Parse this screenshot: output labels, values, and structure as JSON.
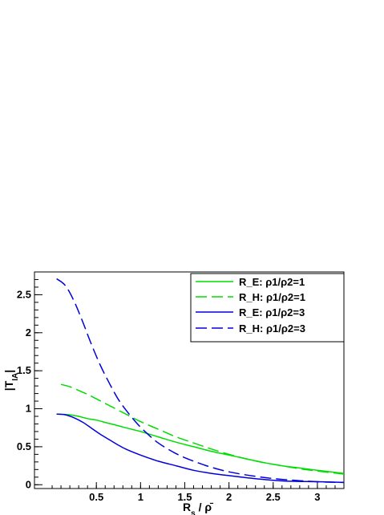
{
  "chart_data": {
    "type": "line",
    "xlabel": "R_s / ρ̄",
    "ylabel": "|T_IA|",
    "xlim": [
      -0.2,
      3.3
    ],
    "ylim": [
      -0.05,
      2.8
    ],
    "grid": false,
    "legend_position": "top-right",
    "x_ticks": [
      0.5,
      1,
      1.5,
      2,
      2.5,
      3
    ],
    "x_tick_labels": [
      "0.5",
      "1",
      "1.5",
      "2",
      "2.5",
      "3"
    ],
    "y_ticks": [
      0,
      0.5,
      1,
      1.5,
      2,
      2.5
    ],
    "y_tick_labels": [
      "0",
      "0.5",
      "1",
      "1.5",
      "2",
      "2.5"
    ],
    "series": [
      {
        "name": "R_E: ρ1/ρ2=1",
        "color": "#00dd00",
        "dash": "solid",
        "x": [
          0.05,
          0.2,
          0.3,
          0.4,
          0.5,
          0.6,
          0.7,
          0.8,
          0.9,
          1.0,
          1.2,
          1.4,
          1.6,
          1.8,
          2.0,
          2.2,
          2.4,
          2.6,
          2.8,
          3.0,
          3.3
        ],
        "y": [
          0.93,
          0.92,
          0.9,
          0.87,
          0.85,
          0.82,
          0.79,
          0.76,
          0.73,
          0.7,
          0.63,
          0.56,
          0.5,
          0.44,
          0.39,
          0.34,
          0.29,
          0.25,
          0.22,
          0.19,
          0.15
        ]
      },
      {
        "name": "R_H: ρ1/ρ2=1",
        "color": "#00dd00",
        "dash": "dashed",
        "x": [
          0.1,
          0.2,
          0.3,
          0.4,
          0.5,
          0.6,
          0.7,
          0.8,
          0.9,
          1.0,
          1.2,
          1.4,
          1.6,
          1.8,
          2.0,
          2.2,
          2.4,
          2.6,
          2.8,
          3.0,
          3.3
        ],
        "y": [
          1.32,
          1.29,
          1.24,
          1.19,
          1.13,
          1.07,
          1.01,
          0.95,
          0.89,
          0.83,
          0.73,
          0.63,
          0.55,
          0.47,
          0.4,
          0.34,
          0.29,
          0.25,
          0.21,
          0.18,
          0.14
        ]
      },
      {
        "name": "R_E: ρ1/ρ2=3",
        "color": "#0000dd",
        "dash": "solid",
        "x": [
          0.05,
          0.15,
          0.25,
          0.35,
          0.45,
          0.55,
          0.65,
          0.75,
          0.85,
          1.0,
          1.2,
          1.4,
          1.6,
          1.8,
          2.0,
          2.3,
          2.6,
          3.0,
          3.3
        ],
        "y": [
          0.93,
          0.92,
          0.88,
          0.82,
          0.74,
          0.66,
          0.59,
          0.52,
          0.46,
          0.39,
          0.31,
          0.25,
          0.19,
          0.15,
          0.12,
          0.08,
          0.05,
          0.04,
          0.03
        ]
      },
      {
        "name": "R_H: ρ1/ρ2=3",
        "color": "#0000dd",
        "dash": "dashed",
        "x": [
          0.05,
          0.15,
          0.25,
          0.35,
          0.45,
          0.55,
          0.65,
          0.75,
          0.85,
          0.95,
          1.05,
          1.2,
          1.4,
          1.6,
          1.8,
          2.0,
          2.3,
          2.6,
          3.0,
          3.3
        ],
        "y": [
          2.71,
          2.62,
          2.41,
          2.13,
          1.83,
          1.56,
          1.33,
          1.12,
          0.96,
          0.82,
          0.7,
          0.55,
          0.41,
          0.31,
          0.23,
          0.17,
          0.11,
          0.07,
          0.04,
          0.03
        ]
      }
    ]
  }
}
